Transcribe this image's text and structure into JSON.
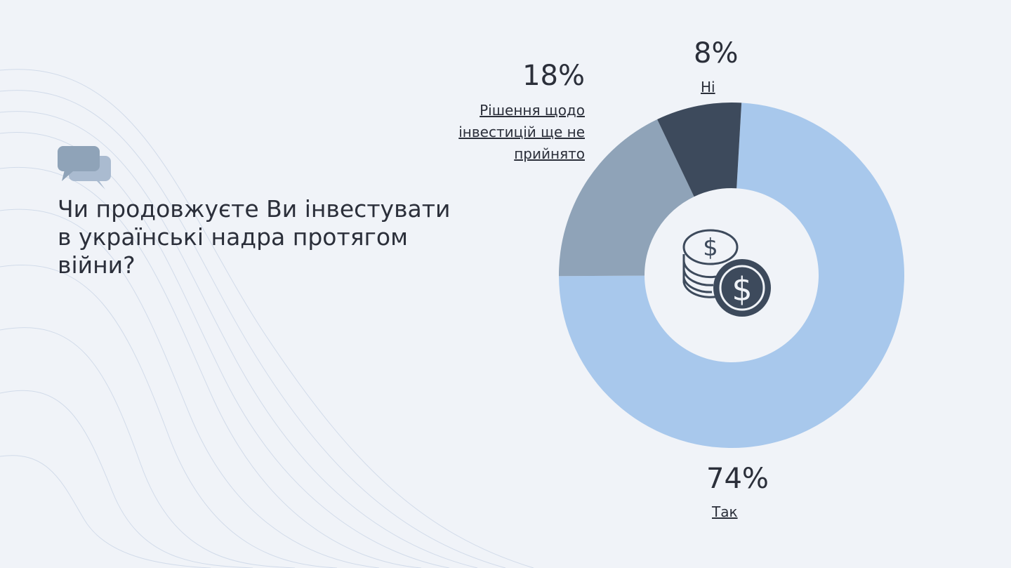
{
  "chart_data": {
    "type": "pie",
    "donut": true,
    "title": "Чи продовжуєте Ви інвестувати в українські надра протягом війни?",
    "categories": [
      "Так",
      "Рішення щодо інвестицій ще не прийнято",
      "Ні"
    ],
    "values": [
      74,
      18,
      8
    ],
    "value_labels": [
      "74%",
      "18%",
      "8%"
    ],
    "colors": [
      "#a8c8ec",
      "#8fa3b8",
      "#3d4a5c"
    ]
  }
}
